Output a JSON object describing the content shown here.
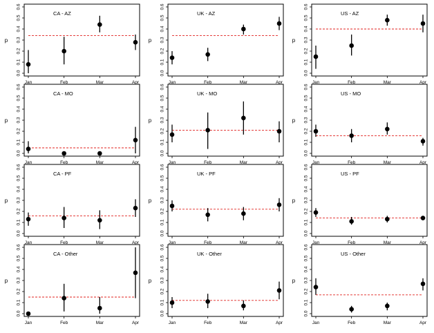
{
  "chart_data": [
    {
      "type": "scatter",
      "title": "CA - AZ",
      "ylabel": "p",
      "categories": [
        "Jan",
        "Feb",
        "Mar",
        "Apr"
      ],
      "ylim": [
        0,
        0.6
      ],
      "yticks": [
        "0.0",
        "0.1",
        "0.2",
        "0.3",
        "0.4",
        "0.5",
        "0.6"
      ],
      "mean": 0.34,
      "points": [
        0.08,
        0.2,
        0.44,
        0.28
      ],
      "ci_low": [
        0.0,
        0.08,
        0.37,
        0.21
      ],
      "ci_high": [
        0.21,
        0.33,
        0.52,
        0.35
      ]
    },
    {
      "type": "scatter",
      "title": "UK - AZ",
      "ylabel": "p",
      "categories": [
        "Jan",
        "Feb",
        "Mar",
        "Apr"
      ],
      "ylim": [
        0,
        0.6
      ],
      "yticks": [
        "0.0",
        "0.1",
        "0.2",
        "0.3",
        "0.4",
        "0.5",
        "0.6"
      ],
      "mean": 0.34,
      "points": [
        0.14,
        0.17,
        0.4,
        0.45
      ],
      "ci_low": [
        0.08,
        0.11,
        0.35,
        0.39
      ],
      "ci_high": [
        0.2,
        0.23,
        0.44,
        0.51
      ]
    },
    {
      "type": "scatter",
      "title": "US - AZ",
      "ylabel": "p",
      "categories": [
        "Jan",
        "Feb",
        "Mar",
        "Apr"
      ],
      "ylim": [
        0,
        0.6
      ],
      "yticks": [
        "0.0",
        "0.1",
        "0.2",
        "0.3",
        "0.4",
        "0.5",
        "0.6"
      ],
      "mean": 0.4,
      "points": [
        0.15,
        0.25,
        0.48,
        0.45
      ],
      "ci_low": [
        0.04,
        0.16,
        0.43,
        0.37
      ],
      "ci_high": [
        0.25,
        0.35,
        0.53,
        0.53
      ]
    },
    {
      "type": "scatter",
      "title": "CA - MO",
      "ylabel": "p",
      "categories": [
        "Jan",
        "Feb",
        "Mar",
        "Apr"
      ],
      "ylim": [
        0,
        0.6
      ],
      "yticks": [
        "0.0",
        "0.1",
        "0.2",
        "0.3",
        "0.4",
        "0.5",
        "0.6"
      ],
      "mean": 0.05,
      "points": [
        0.04,
        0.0,
        0.0,
        0.12
      ],
      "ci_low": [
        0.0,
        0.0,
        0.0,
        0.0
      ],
      "ci_high": [
        0.11,
        0.01,
        0.01,
        0.24
      ]
    },
    {
      "type": "scatter",
      "title": "UK - MO",
      "ylabel": "p",
      "categories": [
        "Jan",
        "Feb",
        "Mar",
        "Apr"
      ],
      "ylim": [
        0,
        0.6
      ],
      "yticks": [
        "0.0",
        "0.1",
        "0.2",
        "0.3",
        "0.4",
        "0.5",
        "0.6"
      ],
      "mean": 0.21,
      "points": [
        0.17,
        0.21,
        0.32,
        0.2
      ],
      "ci_low": [
        0.1,
        0.04,
        0.17,
        0.1
      ],
      "ci_high": [
        0.26,
        0.37,
        0.47,
        0.29
      ]
    },
    {
      "type": "scatter",
      "title": "US - MO",
      "ylabel": "p",
      "categories": [
        "Jan",
        "Feb",
        "Mar",
        "Apr"
      ],
      "ylim": [
        0,
        0.6
      ],
      "yticks": [
        "0.0",
        "0.1",
        "0.2",
        "0.3",
        "0.4",
        "0.5",
        "0.6"
      ],
      "mean": 0.16,
      "points": [
        0.2,
        0.16,
        0.22,
        0.11
      ],
      "ci_low": [
        0.15,
        0.1,
        0.17,
        0.07
      ],
      "ci_high": [
        0.26,
        0.22,
        0.28,
        0.14
      ]
    },
    {
      "type": "scatter",
      "title": "CA - PF",
      "ylabel": "p",
      "categories": [
        "Jan",
        "Feb",
        "Mar",
        "Apr"
      ],
      "ylim": [
        0,
        0.6
      ],
      "yticks": [
        "0.0",
        "0.1",
        "0.2",
        "0.3",
        "0.4",
        "0.5",
        "0.6"
      ],
      "mean": 0.16,
      "points": [
        0.13,
        0.14,
        0.12,
        0.23
      ],
      "ci_low": [
        0.07,
        0.05,
        0.04,
        0.15
      ],
      "ci_high": [
        0.19,
        0.24,
        0.21,
        0.31
      ]
    },
    {
      "type": "scatter",
      "title": "UK - PF",
      "ylabel": "p",
      "categories": [
        "Jan",
        "Feb",
        "Mar",
        "Apr"
      ],
      "ylim": [
        0,
        0.6
      ],
      "yticks": [
        "0.0",
        "0.1",
        "0.2",
        "0.3",
        "0.4",
        "0.5",
        "0.6"
      ],
      "mean": 0.22,
      "points": [
        0.25,
        0.17,
        0.18,
        0.26
      ],
      "ci_low": [
        0.2,
        0.11,
        0.12,
        0.2
      ],
      "ci_high": [
        0.3,
        0.23,
        0.24,
        0.32
      ]
    },
    {
      "type": "scatter",
      "title": "US - PF",
      "ylabel": "p",
      "categories": [
        "Jan",
        "Feb",
        "Mar",
        "Apr"
      ],
      "ylim": [
        0,
        0.6
      ],
      "yticks": [
        "0.0",
        "0.1",
        "0.2",
        "0.3",
        "0.4",
        "0.5",
        "0.6"
      ],
      "mean": 0.14,
      "points": [
        0.19,
        0.11,
        0.13,
        0.14
      ],
      "ci_low": [
        0.15,
        0.08,
        0.1,
        0.12
      ],
      "ci_high": [
        0.23,
        0.15,
        0.16,
        0.16
      ]
    },
    {
      "type": "scatter",
      "title": "CA - Other",
      "ylabel": "p",
      "categories": [
        "Jan",
        "Feb",
        "Mar",
        "Apr"
      ],
      "ylim": [
        0,
        0.6
      ],
      "yticks": [
        "0.0",
        "0.1",
        "0.2",
        "0.3",
        "0.4",
        "0.5",
        "0.6"
      ],
      "mean": 0.15,
      "points": [
        0.0,
        0.14,
        0.05,
        0.37
      ],
      "ci_low": [
        0.0,
        0.02,
        0.0,
        0.14
      ],
      "ci_high": [
        0.01,
        0.27,
        0.15,
        0.6
      ]
    },
    {
      "type": "scatter",
      "title": "UK - Other",
      "ylabel": "p",
      "categories": [
        "Jan",
        "Feb",
        "Mar",
        "Apr"
      ],
      "ylim": [
        0,
        0.6
      ],
      "yticks": [
        "0.0",
        "0.1",
        "0.2",
        "0.3",
        "0.4",
        "0.5",
        "0.6"
      ],
      "mean": 0.12,
      "points": [
        0.1,
        0.11,
        0.07,
        0.21
      ],
      "ci_low": [
        0.05,
        0.05,
        0.03,
        0.13
      ],
      "ci_high": [
        0.15,
        0.18,
        0.12,
        0.29
      ]
    },
    {
      "type": "scatter",
      "title": "US - Other",
      "ylabel": "p",
      "categories": [
        "Jan",
        "Feb",
        "Mar",
        "Apr"
      ],
      "ylim": [
        0,
        0.6
      ],
      "yticks": [
        "0.0",
        "0.1",
        "0.2",
        "0.3",
        "0.4",
        "0.5",
        "0.6"
      ],
      "mean": 0.17,
      "points": [
        0.24,
        0.04,
        0.07,
        0.27
      ],
      "ci_low": [
        0.17,
        0.01,
        0.03,
        0.21
      ],
      "ci_high": [
        0.32,
        0.07,
        0.1,
        0.32
      ]
    }
  ]
}
